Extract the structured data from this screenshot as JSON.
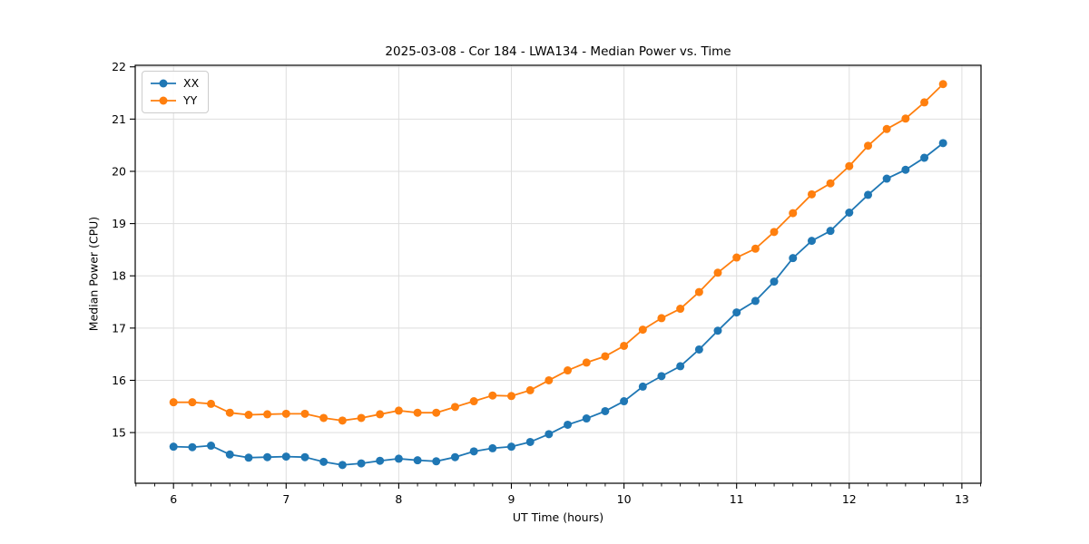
{
  "figure": {
    "title": "2025-03-08 - Cor 184 - LWA134 - Median Power vs. Time",
    "background_color": "#ffffff",
    "text_color": "#000000",
    "grid_color": "#dedede",
    "spine_color": "#000000"
  },
  "chart_data": {
    "type": "line",
    "title": "2025-03-08 - Cor 184 - LWA134 - Median Power vs. Time",
    "xlabel": "UT Time (hours)",
    "ylabel": "Median Power (CPU)",
    "xlim": [
      5.66,
      13.17
    ],
    "ylim": [
      14.03,
      22.03
    ],
    "x_major_ticks": [
      6,
      7,
      8,
      9,
      10,
      11,
      12,
      13
    ],
    "x_minor_tick_step": 0.16667,
    "y_ticks": [
      15,
      16,
      17,
      18,
      19,
      20,
      21,
      22
    ],
    "grid": true,
    "legend_position": "upper-left",
    "marker": "circle",
    "marker_radius": 4.5,
    "line_width": 1.8,
    "x": [
      6.0,
      6.167,
      6.333,
      6.5,
      6.667,
      6.833,
      7.0,
      7.167,
      7.333,
      7.5,
      7.667,
      7.833,
      8.0,
      8.167,
      8.333,
      8.5,
      8.667,
      8.833,
      9.0,
      9.167,
      9.333,
      9.5,
      9.667,
      9.833,
      10.0,
      10.167,
      10.333,
      10.5,
      10.667,
      10.833,
      11.0,
      11.167,
      11.333,
      11.5,
      11.667,
      11.833,
      12.0,
      12.167,
      12.333,
      12.5,
      12.667,
      12.833
    ],
    "series": [
      {
        "name": "XX",
        "color": "#1f77b4",
        "values": [
          14.73,
          14.72,
          14.75,
          14.58,
          14.52,
          14.53,
          14.54,
          14.53,
          14.44,
          14.38,
          14.41,
          14.46,
          14.5,
          14.47,
          14.45,
          14.53,
          14.64,
          14.7,
          14.73,
          14.82,
          14.97,
          15.15,
          15.27,
          15.41,
          15.6,
          15.88,
          16.08,
          16.27,
          16.59,
          16.95,
          17.3,
          17.52,
          17.89,
          18.34,
          18.67,
          18.86,
          19.21,
          19.55,
          19.86,
          20.03,
          20.26,
          20.54
        ]
      },
      {
        "name": "YY",
        "color": "#ff7f0e",
        "values": [
          15.58,
          15.58,
          15.55,
          15.38,
          15.34,
          15.35,
          15.36,
          15.36,
          15.28,
          15.23,
          15.28,
          15.35,
          15.42,
          15.38,
          15.38,
          15.49,
          15.6,
          15.71,
          15.7,
          15.81,
          16.0,
          16.19,
          16.34,
          16.46,
          16.66,
          16.97,
          17.19,
          17.37,
          17.69,
          18.06,
          18.35,
          18.52,
          18.84,
          19.2,
          19.56,
          19.77,
          20.1,
          20.49,
          20.81,
          21.01,
          21.32,
          21.67
        ]
      }
    ]
  }
}
